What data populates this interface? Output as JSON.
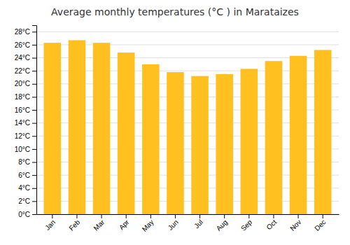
{
  "chart_data": {
    "type": "bar",
    "title": "Average monthly temperatures (°C ) in Marataizes",
    "categories": [
      "Jan",
      "Feb",
      "Mar",
      "Apr",
      "May",
      "Jun",
      "Jul",
      "Aug",
      "Sep",
      "Oct",
      "Nov",
      "Dec"
    ],
    "values": [
      26.3,
      26.7,
      26.3,
      24.8,
      23.0,
      21.8,
      21.2,
      21.5,
      22.3,
      23.5,
      24.3,
      25.2
    ],
    "color": "#FFC020",
    "ylim": [
      0,
      29
    ],
    "yticks": [
      {
        "value": 0,
        "label": "0°C"
      },
      {
        "value": 2,
        "label": "2°C"
      },
      {
        "value": 4,
        "label": "4°C"
      },
      {
        "value": 6,
        "label": "6°C"
      },
      {
        "value": 8,
        "label": "8°C"
      },
      {
        "value": 10,
        "label": "10°C"
      },
      {
        "value": 12,
        "label": "12°C"
      },
      {
        "value": 14,
        "label": "14°C"
      },
      {
        "value": 16,
        "label": "16°C"
      },
      {
        "value": 18,
        "label": "18°C"
      },
      {
        "value": 20,
        "label": "20°C"
      },
      {
        "value": 22,
        "label": "22°C"
      },
      {
        "value": 24,
        "label": "24°C"
      },
      {
        "value": 26,
        "label": "26°C"
      },
      {
        "value": 28,
        "label": "28°C"
      }
    ],
    "grid": true
  }
}
